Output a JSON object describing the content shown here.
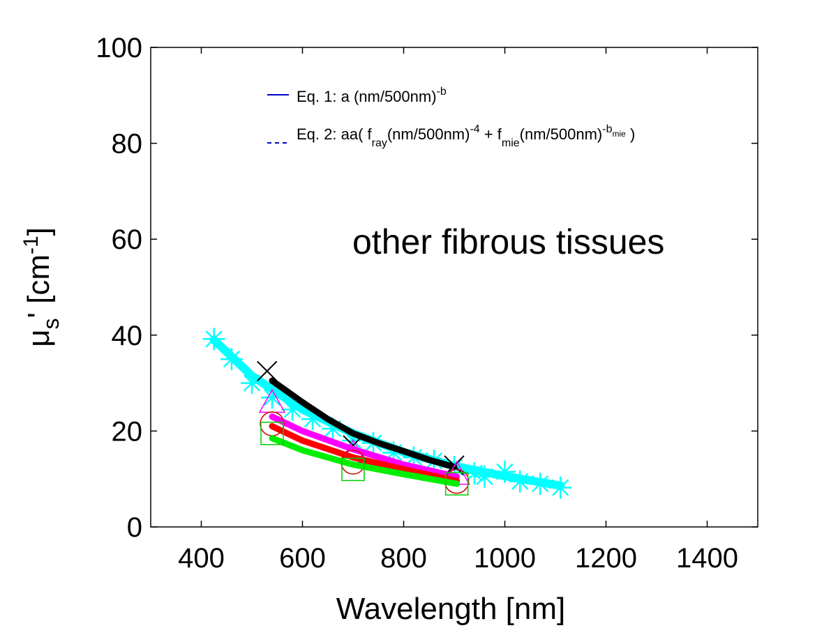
{
  "chart_data": {
    "type": "scatter",
    "title": "",
    "xlabel": "Wavelength [nm]",
    "ylabel": {
      "base": "μ",
      "sub": "s",
      "prime": "' [cm",
      "sup": "-1",
      "close": "]"
    },
    "xlim": [
      300,
      1500
    ],
    "ylim": [
      0,
      100
    ],
    "xticks": [
      "400",
      "600",
      "800",
      "1000",
      "1200",
      "1400"
    ],
    "yticks": [
      "0",
      "20",
      "40",
      "60",
      "80",
      "100"
    ],
    "grid": false,
    "legend_position": "top",
    "legend": [
      {
        "label": "Eq. 1: a (nm/500nm)",
        "sup": "-b",
        "style": "solid",
        "color": "#0000cc"
      },
      {
        "label": "Eq. 2: aa( f",
        "parts": [
          "ray",
          "(nm/500nm)",
          "-4",
          " + f",
          "mie",
          "(nm/500nm)",
          "-b",
          "mie",
          " )"
        ],
        "style": "dashed",
        "color": "#0000cc"
      }
    ],
    "annotation": "other fibrous tissues",
    "series": [
      {
        "color": "#00ffff",
        "marker": "asterisk",
        "points": [
          [
            425,
            39.2
          ],
          [
            460,
            35.0
          ],
          [
            500,
            30.0
          ],
          [
            540,
            27.0
          ],
          [
            580,
            24.5
          ],
          [
            620,
            22.5
          ],
          [
            660,
            20.5
          ],
          [
            700,
            18.0
          ],
          [
            740,
            17.5
          ],
          [
            780,
            15.5
          ],
          [
            820,
            14.5
          ],
          [
            860,
            13.8
          ],
          [
            900,
            12.5
          ],
          [
            940,
            11.2
          ],
          [
            960,
            10.5
          ],
          [
            1000,
            11.5
          ],
          [
            1030,
            9.5
          ],
          [
            1070,
            9.0
          ],
          [
            1110,
            8.2
          ]
        ],
        "fit": [
          [
            425,
            39.0
          ],
          [
            500,
            31.5
          ],
          [
            600,
            24.5
          ],
          [
            700,
            19.5
          ],
          [
            800,
            15.6
          ],
          [
            900,
            12.7
          ],
          [
            1000,
            10.6
          ],
          [
            1110,
            8.6
          ]
        ]
      },
      {
        "color": "#000000",
        "marker": "x",
        "points": [
          [
            530,
            32.5
          ],
          [
            700,
            17.0
          ],
          [
            900,
            12.8
          ]
        ],
        "fit": [
          [
            540,
            30.5
          ],
          [
            600,
            26.0
          ],
          [
            650,
            22.5
          ],
          [
            700,
            19.5
          ],
          [
            750,
            17.5
          ],
          [
            800,
            15.8
          ],
          [
            850,
            14.0
          ],
          [
            900,
            12.5
          ]
        ]
      },
      {
        "color": "#ff00ff",
        "marker": "triangle",
        "points": [
          [
            540,
            26.0
          ],
          [
            700,
            15.5
          ],
          [
            905,
            11.0
          ]
        ],
        "fit": [
          [
            540,
            23.0
          ],
          [
            600,
            20.0
          ],
          [
            700,
            16.2
          ],
          [
            800,
            13.0
          ],
          [
            905,
            10.5
          ]
        ]
      },
      {
        "color": "#ff0000",
        "marker": "circle",
        "points": [
          [
            540,
            21.5
          ],
          [
            700,
            13.5
          ],
          [
            905,
            9.5
          ]
        ],
        "fit": [
          [
            540,
            21.0
          ],
          [
            600,
            18.0
          ],
          [
            700,
            14.5
          ],
          [
            800,
            12.0
          ],
          [
            905,
            9.6
          ]
        ]
      },
      {
        "color": "#00ee00",
        "marker": "square",
        "points": [
          [
            540,
            19.5
          ],
          [
            700,
            12.0
          ],
          [
            905,
            9.0
          ]
        ],
        "fit": [
          [
            540,
            18.5
          ],
          [
            600,
            16.0
          ],
          [
            700,
            13.0
          ],
          [
            800,
            11.0
          ],
          [
            905,
            9.0
          ]
        ]
      }
    ]
  }
}
